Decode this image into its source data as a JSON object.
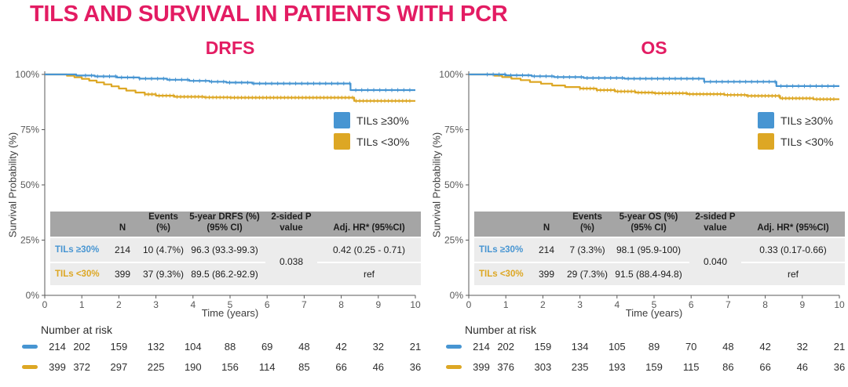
{
  "title": "TILS AND SURVIVAL IN PATIENTS WITH PCR",
  "colors": {
    "accent_pink": "#E31C63",
    "tils_high_blue": "#4795D2",
    "tils_low_yellow": "#DDA724",
    "table_header_bg": "#A5A5A5",
    "table_row_bg": "#ECECEC",
    "axis_gray": "#5A5A5A"
  },
  "legend": {
    "items": [
      {
        "label": "TILs ≥30%",
        "color": "#4795D2"
      },
      {
        "label": "TILs <30%",
        "color": "#DDA724"
      }
    ]
  },
  "number_at_risk_label": "Number at risk",
  "chart_data": [
    {
      "type": "line",
      "subtype": "kaplan-meier-step",
      "title": "DRFS",
      "xlabel": "Time (years)",
      "ylabel": "Survival Probability (%)",
      "xlim": [
        0,
        10
      ],
      "ylim": [
        0,
        100
      ],
      "xticks": [
        0,
        1,
        2,
        3,
        4,
        5,
        6,
        7,
        8,
        9,
        10
      ],
      "yticks": [
        {
          "value": 100,
          "label": "100%"
        },
        {
          "value": 75,
          "label": "75%"
        },
        {
          "value": 50,
          "label": "50%"
        },
        {
          "value": 25,
          "label": "25%"
        },
        {
          "value": 0,
          "label": "0%"
        }
      ],
      "legend_position": "inside-right-upper",
      "grid": false,
      "series": [
        {
          "name": "TILs ≥30%",
          "color": "#4795D2",
          "steps": [
            [
              0,
              100
            ],
            [
              0.85,
              99.5
            ],
            [
              1.35,
              99.1
            ],
            [
              1.95,
              98.6
            ],
            [
              2.55,
              98.1
            ],
            [
              3.3,
              97.6
            ],
            [
              3.9,
              97.1
            ],
            [
              4.45,
              96.7
            ],
            [
              4.9,
              96.3
            ],
            [
              5.6,
              95.9
            ],
            [
              8.25,
              92.9
            ],
            [
              10,
              92.9
            ]
          ],
          "censoring": {
            "start": 1.1,
            "end": 9.85,
            "count": 55
          }
        },
        {
          "name": "TILs <30%",
          "color": "#DDA724",
          "steps": [
            [
              0,
              100
            ],
            [
              0.6,
              99.4
            ],
            [
              0.8,
              98.7
            ],
            [
              1.0,
              98.0
            ],
            [
              1.2,
              97.2
            ],
            [
              1.4,
              96.4
            ],
            [
              1.6,
              95.5
            ],
            [
              1.8,
              94.6
            ],
            [
              2.0,
              93.6
            ],
            [
              2.2,
              92.7
            ],
            [
              2.45,
              91.8
            ],
            [
              2.7,
              91.0
            ],
            [
              3.0,
              90.4
            ],
            [
              3.5,
              89.9
            ],
            [
              4.3,
              89.6
            ],
            [
              5.0,
              89.5
            ],
            [
              8.35,
              88.0
            ],
            [
              10,
              88.0
            ]
          ],
          "censoring": {
            "start": 2.7,
            "end": 9.85,
            "count": 75
          }
        }
      ],
      "stats_table": {
        "headers": [
          "",
          "N",
          "Events\n(%)",
          "5-year DRFS (%)\n(95% CI)",
          "2-sided P\nvalue",
          "Adj. HR* (95%CI)"
        ],
        "rows": [
          {
            "label": "TILs ≥30%",
            "color": "#4795D2",
            "n": "214",
            "events": "10 (4.7%)",
            "five_year": "96.3 (93.3-99.3)",
            "hr": "0.42 (0.25 - 0.71)"
          },
          {
            "label": "TILs <30%",
            "color": "#DDA724",
            "n": "399",
            "events": "37 (9.3%)",
            "five_year": "89.5 (86.2-92.9)",
            "hr": "ref"
          }
        ],
        "p_value": "0.038"
      },
      "number_at_risk": {
        "times": [
          0,
          1,
          2,
          3,
          4,
          5,
          6,
          7,
          8,
          9,
          10
        ],
        "rows": [
          {
            "name": "TILs ≥30%",
            "color": "#4795D2",
            "values": [
              214,
              202,
              159,
              132,
              104,
              88,
              69,
              48,
              42,
              32,
              21
            ]
          },
          {
            "name": "TILs <30%",
            "color": "#DDA724",
            "values": [
              399,
              372,
              297,
              225,
              190,
              156,
              114,
              85,
              66,
              46,
              36
            ]
          }
        ]
      }
    },
    {
      "type": "line",
      "subtype": "kaplan-meier-step",
      "title": "OS",
      "xlabel": "Time (years)",
      "ylabel": "Survival Probability (%)",
      "xlim": [
        0,
        10
      ],
      "ylim": [
        0,
        100
      ],
      "xticks": [
        0,
        1,
        2,
        3,
        4,
        5,
        6,
        7,
        8,
        9,
        10
      ],
      "yticks": [
        {
          "value": 100,
          "label": "100%"
        },
        {
          "value": 75,
          "label": "75%"
        },
        {
          "value": 50,
          "label": "50%"
        },
        {
          "value": 25,
          "label": "25%"
        },
        {
          "value": 0,
          "label": "0%"
        }
      ],
      "legend_position": "inside-right-upper",
      "grid": false,
      "series": [
        {
          "name": "TILs ≥30%",
          "color": "#4795D2",
          "steps": [
            [
              0,
              100
            ],
            [
              1.0,
              99.6
            ],
            [
              1.7,
              99.2
            ],
            [
              2.3,
              98.8
            ],
            [
              3.1,
              98.4
            ],
            [
              4.2,
              98.1
            ],
            [
              6.35,
              96.7
            ],
            [
              8.3,
              94.7
            ],
            [
              10,
              94.7
            ]
          ],
          "censoring": {
            "start": 0.5,
            "end": 9.85,
            "count": 60
          }
        },
        {
          "name": "TILs <30%",
          "color": "#DDA724",
          "steps": [
            [
              0,
              100
            ],
            [
              0.7,
              99.4
            ],
            [
              0.9,
              98.8
            ],
            [
              1.15,
              98.1
            ],
            [
              1.4,
              97.4
            ],
            [
              1.65,
              96.6
            ],
            [
              1.95,
              95.8
            ],
            [
              2.25,
              95.0
            ],
            [
              2.6,
              94.3
            ],
            [
              3.0,
              93.6
            ],
            [
              3.45,
              92.9
            ],
            [
              3.95,
              92.3
            ],
            [
              4.5,
              91.8
            ],
            [
              5.0,
              91.5
            ],
            [
              5.9,
              91.1
            ],
            [
              6.9,
              90.7
            ],
            [
              7.5,
              90.3
            ],
            [
              8.4,
              89.2
            ],
            [
              9.3,
              88.8
            ],
            [
              10,
              88.8
            ]
          ],
          "censoring": {
            "start": 3.0,
            "end": 9.85,
            "count": 75
          }
        }
      ],
      "stats_table": {
        "headers": [
          "",
          "N",
          "Events\n(%)",
          "5-year OS (%)\n(95% CI)",
          "2-sided P\nvalue",
          "Adj. HR* (95%CI)"
        ],
        "rows": [
          {
            "label": "TILs ≥30%",
            "color": "#4795D2",
            "n": "214",
            "events": "7 (3.3%)",
            "five_year": "98.1 (95.9-100)",
            "hr": "0.33 (0.17-0.66)"
          },
          {
            "label": "TILs <30%",
            "color": "#DDA724",
            "n": "399",
            "events": "29 (7.3%)",
            "five_year": "91.5 (88.4-94.8)",
            "hr": "ref"
          }
        ],
        "p_value": "0.040"
      },
      "number_at_risk": {
        "times": [
          0,
          1,
          2,
          3,
          4,
          5,
          6,
          7,
          8,
          9,
          10
        ],
        "rows": [
          {
            "name": "TILs ≥30%",
            "color": "#4795D2",
            "values": [
              214,
              202,
              159,
              134,
              105,
              89,
              70,
              48,
              42,
              32,
              21
            ]
          },
          {
            "name": "TILs <30%",
            "color": "#DDA724",
            "values": [
              399,
              376,
              303,
              235,
              193,
              159,
              115,
              86,
              66,
              46,
              36
            ]
          }
        ]
      }
    }
  ]
}
